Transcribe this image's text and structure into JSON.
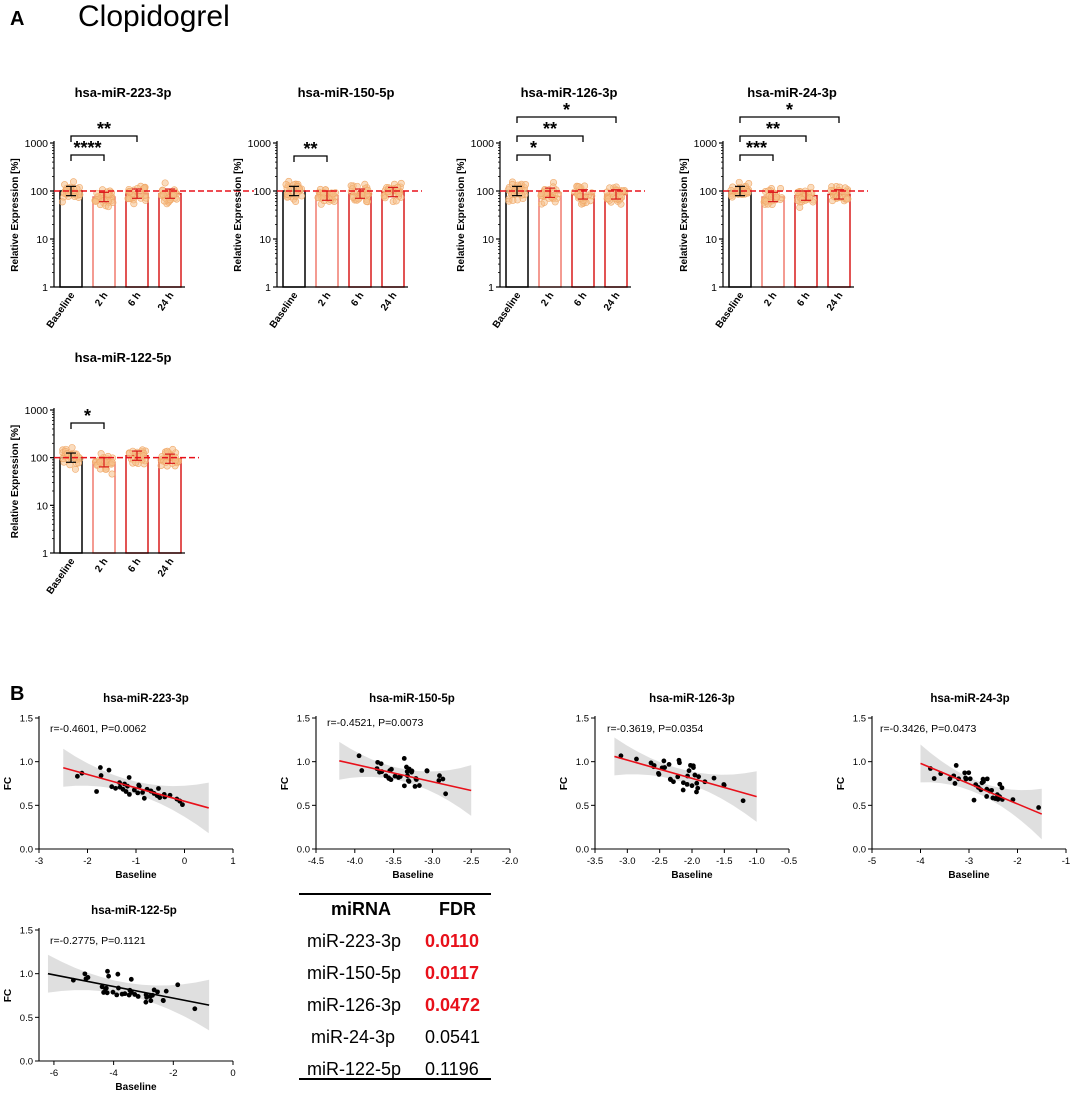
{
  "panel_a": {
    "letter": "A",
    "title": "Clopidogrel"
  },
  "panel_b": {
    "letter": "B"
  },
  "colors": {
    "baseline": "#000000",
    "treat": "#d81b1b",
    "light": "#f07a6e",
    "dot": "#f5c089",
    "refline": "#e8101a",
    "band": "#d9d9d9",
    "fit": "#e8101a",
    "fdr_sig": "#e8101a"
  },
  "chart_data": [
    {
      "type": "bar",
      "title": "hsa-miR-223-3p",
      "ylabel": "Relative Expression [%]",
      "yscale": "log",
      "ylim": [
        1,
        1000
      ],
      "yticks": [
        "1",
        "10",
        "100",
        "1000"
      ],
      "categories": [
        "Baseline",
        "2 h",
        "6 h",
        "24 h"
      ],
      "values": [
        100,
        75,
        88,
        88
      ],
      "reference_line": 100,
      "significance": [
        {
          "from": 0,
          "to": 1,
          "label": "****"
        },
        {
          "from": 0,
          "to": 2,
          "label": "**"
        }
      ]
    },
    {
      "type": "bar",
      "title": "hsa-miR-150-5p",
      "ylabel": "Relative Expression [%]",
      "yscale": "log",
      "ylim": [
        1,
        1000
      ],
      "yticks": [
        "1",
        "10",
        "100",
        "1000"
      ],
      "categories": [
        "Baseline",
        "2 h",
        "6 h",
        "24 h"
      ],
      "values": [
        100,
        80,
        88,
        95
      ],
      "reference_line": 100,
      "significance": [
        {
          "from": 0,
          "to": 1,
          "label": "**"
        }
      ]
    },
    {
      "type": "bar",
      "title": "hsa-miR-126-3p",
      "ylabel": "Relative Expression [%]",
      "yscale": "log",
      "ylim": [
        1,
        1000
      ],
      "yticks": [
        "1",
        "10",
        "100",
        "1000"
      ],
      "categories": [
        "Baseline",
        "2 h",
        "6 h",
        "24 h"
      ],
      "values": [
        100,
        92,
        85,
        85
      ],
      "reference_line": 100,
      "significance": [
        {
          "from": 0,
          "to": 1,
          "label": "*"
        },
        {
          "from": 0,
          "to": 2,
          "label": "**"
        },
        {
          "from": 0,
          "to": 3,
          "label": "*"
        }
      ]
    },
    {
      "type": "bar",
      "title": "hsa-miR-24-3p",
      "ylabel": "Relative Expression [%]",
      "yscale": "log",
      "ylim": [
        1,
        1000
      ],
      "yticks": [
        "1",
        "10",
        "100",
        "1000"
      ],
      "categories": [
        "Baseline",
        "2 h",
        "6 h",
        "24 h"
      ],
      "values": [
        100,
        75,
        80,
        85
      ],
      "reference_line": 100,
      "significance": [
        {
          "from": 0,
          "to": 1,
          "label": "***"
        },
        {
          "from": 0,
          "to": 2,
          "label": "**"
        },
        {
          "from": 0,
          "to": 3,
          "label": "*"
        }
      ]
    },
    {
      "type": "bar",
      "title": "hsa-miR-122-5p",
      "ylabel": "Relative Expression [%]",
      "yscale": "log",
      "ylim": [
        1,
        1000
      ],
      "yticks": [
        "1",
        "10",
        "100",
        "1000"
      ],
      "categories": [
        "Baseline",
        "2 h",
        "6 h",
        "24 h"
      ],
      "values": [
        100,
        80,
        110,
        95
      ],
      "reference_line": 100,
      "significance": [
        {
          "from": 0,
          "to": 1,
          "label": "*"
        }
      ]
    },
    {
      "type": "scatter",
      "title": "hsa-miR-223-3p",
      "xlabel": "Baseline",
      "ylabel": "FC",
      "xlim": [
        -3,
        1
      ],
      "ylim": [
        0,
        1.5
      ],
      "xticks": [
        "-3",
        "-2",
        "-1",
        "0",
        "1"
      ],
      "yticks": [
        "0.0",
        "0.5",
        "1.0",
        "1.5"
      ],
      "stat": "r=-0.4601, P=0.0062",
      "fit_color": "red",
      "fit": [
        [
          -2.5,
          0.93
        ],
        [
          0.5,
          0.47
        ]
      ]
    },
    {
      "type": "scatter",
      "title": "hsa-miR-150-5p",
      "xlabel": "Baseline",
      "ylabel": "FC",
      "xlim": [
        -4.5,
        -2.0
      ],
      "ylim": [
        0,
        1.5
      ],
      "xticks": [
        "-4.5",
        "-4.0",
        "-3.5",
        "-3.0",
        "-2.5",
        "-2.0"
      ],
      "yticks": [
        "0.0",
        "0.5",
        "1.0",
        "1.5"
      ],
      "stat": "r=-0.4521, P=0.0073",
      "fit_color": "red",
      "fit": [
        [
          -4.2,
          1.01
        ],
        [
          -2.5,
          0.67
        ]
      ]
    },
    {
      "type": "scatter",
      "title": "hsa-miR-126-3p",
      "xlabel": "Baseline",
      "ylabel": "FC",
      "xlim": [
        -3.5,
        -0.5
      ],
      "ylim": [
        0,
        1.5
      ],
      "xticks": [
        "-3.5",
        "-3.0",
        "-2.5",
        "-2.0",
        "-1.5",
        "-1.0",
        "-0.5"
      ],
      "yticks": [
        "0.0",
        "0.5",
        "1.0",
        "1.5"
      ],
      "stat": "r=-0.3619, P=0.0354",
      "fit_color": "red",
      "fit": [
        [
          -3.2,
          1.06
        ],
        [
          -1.0,
          0.6
        ]
      ]
    },
    {
      "type": "scatter",
      "title": "hsa-miR-24-3p",
      "xlabel": "Baseline",
      "ylabel": "FC",
      "xlim": [
        -5,
        -1
      ],
      "ylim": [
        0,
        1.5
      ],
      "xticks": [
        "-5",
        "-4",
        "-3",
        "-2",
        "-1"
      ],
      "yticks": [
        "0.0",
        "0.5",
        "1.0",
        "1.5"
      ],
      "stat": "r=-0.3426, P=0.0473",
      "fit_color": "red",
      "fit": [
        [
          -4,
          0.98
        ],
        [
          -1.5,
          0.4
        ]
      ]
    },
    {
      "type": "scatter",
      "title": "hsa-miR-122-5p",
      "xlabel": "Baseline",
      "ylabel": "FC",
      "xlim": [
        -6.5,
        0
      ],
      "ylim": [
        0,
        1.5
      ],
      "xticks": [
        "-6",
        "-4",
        "-2",
        "0"
      ],
      "yticks": [
        "0.0",
        "0.5",
        "1.0",
        "1.5"
      ],
      "stat": "r=-0.2775, P=0.1121",
      "fit_color": "black",
      "fit": [
        [
          -6.2,
          1.0
        ],
        [
          -0.8,
          0.64
        ]
      ]
    },
    {
      "type": "table",
      "columns": [
        "miRNA",
        "FDR"
      ],
      "rows": [
        [
          "miR-223-3p",
          "0.0110",
          true
        ],
        [
          "miR-150-5p",
          "0.0117",
          true
        ],
        [
          "miR-126-3p",
          "0.0472",
          true
        ],
        [
          "miR-24-3p",
          "0.0541",
          false
        ],
        [
          "miR-122-5p",
          "0.1196",
          false
        ]
      ]
    }
  ],
  "fdr_table": {
    "header": {
      "mirna": "miRNA",
      "fdr": "FDR"
    },
    "rows": [
      {
        "mirna": "miR-223-3p",
        "fdr": "0.0110"
      },
      {
        "mirna": "miR-150-5p",
        "fdr": "0.0117"
      },
      {
        "mirna": "miR-126-3p",
        "fdr": "0.0472"
      },
      {
        "mirna": "miR-24-3p",
        "fdr": "0.0541"
      },
      {
        "mirna": "miR-122-5p",
        "fdr": "0.1196"
      }
    ]
  }
}
